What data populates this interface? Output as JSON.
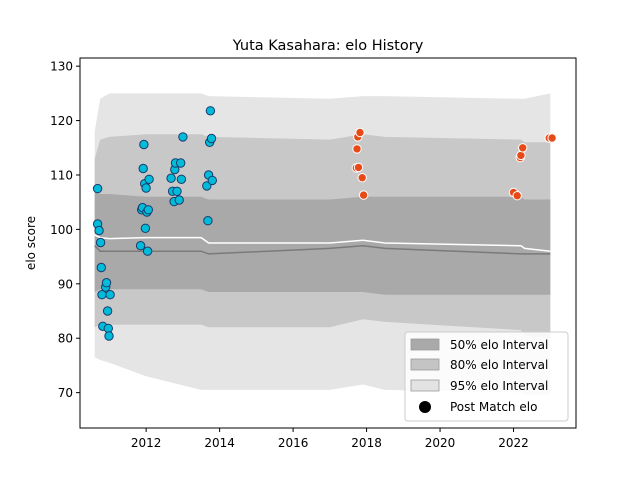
{
  "chart_data": {
    "type": "scatter",
    "title": "Yuta Kasahara: elo History",
    "xlabel": "",
    "ylabel": "elo score",
    "xlim": [
      2010.2,
      2023.7
    ],
    "ylim": [
      63.5,
      131.5
    ],
    "xticks": [
      2012,
      2014,
      2016,
      2018,
      2020,
      2022
    ],
    "yticks": [
      70,
      80,
      90,
      100,
      110,
      120,
      130
    ],
    "grid": false,
    "legend": {
      "placement": "lower-right",
      "entries": [
        {
          "label": "50% elo Interval",
          "kind": "patch",
          "color": "#a9a9a9"
        },
        {
          "label": "80% elo Interval",
          "kind": "patch",
          "color": "#c4c4c4"
        },
        {
          "label": "95% elo Interval",
          "kind": "patch",
          "color": "#e3e3e3"
        },
        {
          "label": "Post Match elo",
          "kind": "marker",
          "color": "#000000"
        }
      ]
    },
    "colors": {
      "band50": "#a9a9a9",
      "band80": "#c8c8c8",
      "band95": "#e5e5e5",
      "median_line": "#7a7a7a",
      "mean_line": "#ffffff",
      "points_early": "#00bcd8",
      "points_early_edge": "#1a3a6e",
      "points_late": "#e84a17",
      "points_late_edge": "#ffffff"
    },
    "bands": {
      "x": [
        2010.6,
        2010.75,
        2011.0,
        2012.0,
        2013.5,
        2013.7,
        2017.0,
        2017.9,
        2018.5,
        2022.2,
        2022.3,
        2023.0
      ],
      "p95_low": [
        76.5,
        76.0,
        75.5,
        73.0,
        70.5,
        70.5,
        70.5,
        71.5,
        70.5,
        70.0,
        69.5,
        69.5
      ],
      "p95_high": [
        118.0,
        124.0,
        125.0,
        125.0,
        125.0,
        124.5,
        124.0,
        124.5,
        124.5,
        124.0,
        124.0,
        125.0
      ],
      "p80_low": [
        82.0,
        82.5,
        82.5,
        82.5,
        82.5,
        82.0,
        82.0,
        83.5,
        83.0,
        81.5,
        80.5,
        80.0
      ],
      "p80_high": [
        113.0,
        116.5,
        117.0,
        117.5,
        117.5,
        117.0,
        116.5,
        117.5,
        117.0,
        116.5,
        116.0,
        116.0
      ],
      "p50_low": [
        88.5,
        89.0,
        89.0,
        89.0,
        89.0,
        88.5,
        88.5,
        88.5,
        88.0,
        88.0,
        88.0,
        88.0
      ],
      "p50_high": [
        107.0,
        106.5,
        106.5,
        106.0,
        106.0,
        105.5,
        105.5,
        106.0,
        106.0,
        106.0,
        105.5,
        105.5
      ],
      "median": [
        97.0,
        96.0,
        96.0,
        96.0,
        96.0,
        95.5,
        96.5,
        97.0,
        96.5,
        95.5,
        95.5,
        95.5
      ],
      "mean": [
        99.0,
        98.5,
        98.3,
        98.5,
        98.5,
        97.5,
        97.5,
        98.0,
        97.5,
        97.0,
        96.5,
        96.0
      ]
    },
    "series": [
      {
        "kind": "early",
        "points": [
          [
            2010.68,
            107.5
          ],
          [
            2010.68,
            101.0
          ],
          [
            2010.72,
            99.8
          ],
          [
            2010.76,
            97.6
          ],
          [
            2010.78,
            93.0
          ],
          [
            2010.8,
            88.0
          ],
          [
            2010.82,
            82.2
          ],
          [
            2010.9,
            89.4
          ],
          [
            2010.92,
            90.2
          ],
          [
            2010.95,
            85.0
          ],
          [
            2010.97,
            81.8
          ],
          [
            2010.99,
            80.4
          ],
          [
            2011.02,
            88.0
          ],
          [
            2011.85,
            97.0
          ],
          [
            2011.88,
            103.6
          ],
          [
            2011.9,
            104.0
          ],
          [
            2011.92,
            111.2
          ],
          [
            2011.94,
            115.6
          ],
          [
            2011.96,
            108.4
          ],
          [
            2011.98,
            100.2
          ],
          [
            2012.0,
            107.6
          ],
          [
            2012.02,
            103.2
          ],
          [
            2012.04,
            96.0
          ],
          [
            2012.06,
            103.6
          ],
          [
            2012.08,
            109.2
          ],
          [
            2012.68,
            109.4
          ],
          [
            2012.72,
            107.0
          ],
          [
            2012.76,
            105.1
          ],
          [
            2012.78,
            111.0
          ],
          [
            2012.8,
            112.2
          ],
          [
            2012.84,
            107.0
          ],
          [
            2012.9,
            105.4
          ],
          [
            2012.94,
            112.2
          ],
          [
            2012.96,
            109.2
          ],
          [
            2013.0,
            117.0
          ],
          [
            2013.65,
            108.0
          ],
          [
            2013.68,
            101.6
          ],
          [
            2013.7,
            110.0
          ],
          [
            2013.73,
            116.0
          ],
          [
            2013.75,
            121.8
          ],
          [
            2013.78,
            116.7
          ],
          [
            2013.8,
            109.0
          ]
        ]
      },
      {
        "kind": "late",
        "points": [
          [
            2017.72,
            111.3
          ],
          [
            2017.74,
            114.8
          ],
          [
            2017.76,
            117.0
          ],
          [
            2017.78,
            111.4
          ],
          [
            2017.82,
            117.8
          ],
          [
            2017.88,
            109.5
          ],
          [
            2017.92,
            106.3
          ],
          [
            2022.0,
            106.8
          ],
          [
            2022.1,
            106.2
          ],
          [
            2022.18,
            113.2
          ],
          [
            2022.2,
            113.6
          ],
          [
            2022.25,
            115.0
          ],
          [
            2022.97,
            116.8
          ],
          [
            2023.05,
            116.8
          ]
        ]
      }
    ]
  }
}
